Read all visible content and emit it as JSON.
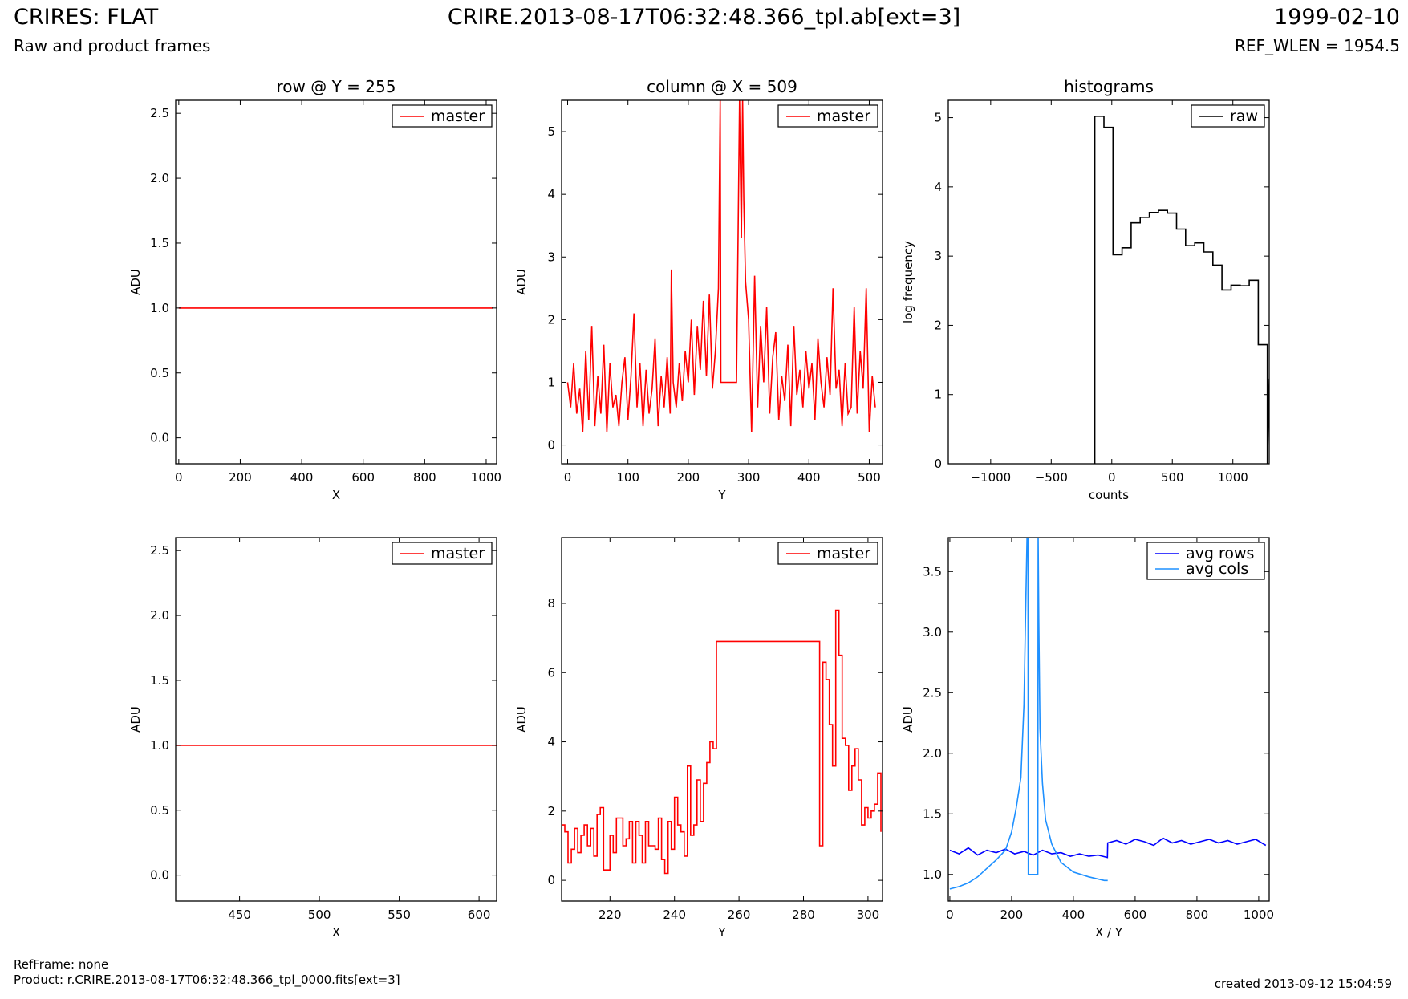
{
  "header": {
    "title": "CRIRES: FLAT",
    "file": "CRIRE.2013-08-17T06:32:48.366_tpl.ab[ext=3]",
    "date": "1999-02-10",
    "subtitle": "Raw and product frames",
    "ref_wlen": "REF_WLEN = 1954.5"
  },
  "footer": {
    "ref_frame": "RefFrame: none",
    "product": "Product: r.CRIRE.2013-08-17T06:32:48.366_tpl_0000.fits[ext=3]",
    "created": "created 2013-09-12 15:04:59"
  },
  "colors": {
    "master": "#ff0000",
    "raw": "#000000",
    "avg_rows": "#0000ff",
    "avg_cols": "#1e90ff"
  },
  "chart_data": [
    {
      "id": "p1",
      "type": "line",
      "title": "row @ Y = 255",
      "xlabel": "X",
      "ylabel": "ADU",
      "xlim": [
        -10,
        1034
      ],
      "ylim": [
        -0.2,
        2.6
      ],
      "xticks": [
        0,
        200,
        400,
        600,
        800,
        1000
      ],
      "xticklabels": [
        "0",
        "200",
        "400",
        "600",
        "800",
        "1000"
      ],
      "yticks": [
        0,
        0.5,
        1,
        1.5,
        2,
        2.5
      ],
      "yticklabels": [
        "0.0",
        "0.5",
        "1.0",
        "1.5",
        "2.0",
        "2.5"
      ],
      "legend_position": "top-right",
      "series": [
        {
          "name": "master",
          "color": "#ff0000",
          "x": [
            0,
            1023
          ],
          "y": [
            1.0,
            1.0
          ]
        }
      ]
    },
    {
      "id": "p2",
      "type": "line",
      "title": "column @ X = 509",
      "xlabel": "Y",
      "ylabel": "ADU",
      "xlim": [
        -10,
        522
      ],
      "ylim": [
        -0.3,
        5.5
      ],
      "xticks": [
        0,
        100,
        200,
        300,
        400,
        500
      ],
      "xticklabels": [
        "0",
        "100",
        "200",
        "300",
        "400",
        "500"
      ],
      "yticks": [
        0,
        1,
        2,
        3,
        4,
        5
      ],
      "yticklabels": [
        "0",
        "1",
        "2",
        "3",
        "4",
        "5"
      ],
      "legend_position": "top-right",
      "series": [
        {
          "name": "master",
          "color": "#ff0000",
          "x": [
            0,
            5,
            10,
            15,
            20,
            25,
            30,
            35,
            40,
            45,
            50,
            55,
            60,
            65,
            70,
            75,
            80,
            85,
            90,
            95,
            100,
            105,
            110,
            115,
            120,
            125,
            130,
            135,
            140,
            145,
            150,
            155,
            160,
            165,
            170,
            172,
            175,
            180,
            185,
            190,
            195,
            200,
            205,
            210,
            215,
            220,
            225,
            230,
            235,
            240,
            245,
            250,
            253,
            254,
            260,
            270,
            280,
            285,
            286,
            288,
            290,
            292,
            295,
            300,
            305,
            310,
            315,
            320,
            325,
            330,
            335,
            340,
            345,
            350,
            355,
            360,
            365,
            370,
            375,
            380,
            385,
            390,
            395,
            400,
            405,
            410,
            415,
            420,
            425,
            430,
            435,
            440,
            445,
            450,
            455,
            460,
            465,
            470,
            475,
            480,
            485,
            490,
            495,
            500,
            505,
            510
          ],
          "y": [
            1.0,
            0.6,
            1.3,
            0.5,
            0.9,
            0.2,
            1.5,
            0.4,
            1.9,
            0.3,
            1.1,
            0.5,
            1.6,
            0.2,
            1.3,
            0.6,
            0.8,
            0.3,
            1.0,
            1.4,
            0.4,
            1.1,
            2.1,
            0.6,
            1.3,
            0.3,
            1.2,
            0.5,
            0.9,
            1.7,
            0.3,
            1.1,
            0.6,
            1.4,
            0.5,
            2.8,
            1.0,
            0.6,
            1.3,
            0.7,
            1.5,
            1.0,
            2.0,
            0.8,
            1.9,
            1.2,
            2.3,
            1.1,
            2.4,
            0.9,
            1.5,
            2.5,
            5.5,
            1.0,
            1.0,
            1.0,
            1.0,
            5.5,
            4.7,
            3.3,
            5.5,
            3.9,
            2.6,
            2.0,
            0.2,
            2.7,
            0.6,
            1.9,
            1.0,
            2.2,
            0.5,
            1.4,
            1.8,
            0.4,
            1.1,
            0.7,
            1.6,
            0.3,
            1.9,
            0.8,
            1.2,
            0.6,
            1.5,
            0.9,
            1.3,
            0.4,
            1.7,
            1.0,
            0.6,
            1.4,
            0.8,
            2.5,
            0.9,
            1.2,
            0.3,
            1.3,
            0.5,
            0.6,
            2.2,
            0.5,
            1.5,
            0.9,
            2.5,
            0.2,
            1.1,
            0.6
          ]
        }
      ]
    },
    {
      "id": "p3",
      "type": "line",
      "title": "histograms",
      "xlabel": "counts",
      "ylabel": "log frequency",
      "xlim": [
        -1350,
        1300
      ],
      "ylim": [
        0,
        5.25
      ],
      "xticks": [
        -1000,
        -500,
        0,
        500,
        1000
      ],
      "xticklabels": [
        "−1000",
        "−500",
        "0",
        "500",
        "1000"
      ],
      "yticks": [
        0,
        1,
        2,
        3,
        4,
        5
      ],
      "yticklabels": [
        "0",
        "1",
        "2",
        "3",
        "4",
        "5"
      ],
      "legend_position": "top-right",
      "series": [
        {
          "name": "raw",
          "color": "#000000",
          "x": [
            -140,
            -140,
            -65,
            -65,
            10,
            10,
            85,
            85,
            160,
            160,
            235,
            235,
            310,
            310,
            385,
            385,
            460,
            460,
            535,
            535,
            610,
            610,
            685,
            685,
            760,
            760,
            835,
            835,
            910,
            910,
            985,
            985,
            1060,
            1060,
            1135,
            1135,
            1210,
            1210,
            1285,
            1285,
            1300
          ],
          "y": [
            0,
            5.02,
            5.02,
            4.86,
            4.86,
            3.02,
            3.02,
            3.12,
            3.12,
            3.48,
            3.48,
            3.56,
            3.56,
            3.63,
            3.63,
            3.66,
            3.66,
            3.62,
            3.62,
            3.39,
            3.39,
            3.15,
            3.15,
            3.19,
            3.19,
            3.06,
            3.06,
            2.87,
            2.87,
            2.51,
            2.51,
            2.58,
            2.58,
            2.57,
            2.57,
            2.65,
            2.65,
            1.72,
            1.72,
            0,
            1.23
          ]
        }
      ]
    },
    {
      "id": "p4",
      "type": "line",
      "title": "",
      "xlabel": "X",
      "ylabel": "ADU",
      "xlim": [
        410,
        611
      ],
      "ylim": [
        -0.2,
        2.6
      ],
      "xticks": [
        450,
        500,
        550,
        600
      ],
      "xticklabels": [
        "450",
        "500",
        "550",
        "600"
      ],
      "yticks": [
        0,
        0.5,
        1,
        1.5,
        2,
        2.5
      ],
      "yticklabels": [
        "0.0",
        "0.5",
        "1.0",
        "1.5",
        "2.0",
        "2.5"
      ],
      "legend_position": "top-right",
      "series": [
        {
          "name": "master",
          "color": "#ff0000",
          "x": [
            410,
            611
          ],
          "y": [
            1.0,
            1.0
          ]
        }
      ]
    },
    {
      "id": "p5",
      "type": "line",
      "title": "",
      "xlabel": "Y",
      "ylabel": "ADU",
      "xlim": [
        205,
        304.5
      ],
      "ylim": [
        -0.6,
        9.9
      ],
      "xticks": [
        220,
        240,
        260,
        280,
        300
      ],
      "xticklabels": [
        "220",
        "240",
        "260",
        "280",
        "300"
      ],
      "yticks": [
        0,
        2,
        4,
        6,
        8
      ],
      "yticklabels": [
        "0",
        "2",
        "4",
        "6",
        "8"
      ],
      "legend_position": "top-right",
      "series": [
        {
          "name": "master",
          "color": "#ff0000",
          "step": true,
          "x": [
            205,
            206,
            207,
            208,
            209,
            210,
            211,
            212,
            213,
            214,
            215,
            216,
            217,
            218,
            219,
            220,
            221,
            222,
            223,
            224,
            225,
            226,
            227,
            228,
            229,
            230,
            231,
            232,
            233,
            234,
            235,
            236,
            237,
            238,
            239,
            240,
            241,
            242,
            243,
            244,
            245,
            246,
            247,
            248,
            249,
            250,
            251,
            252,
            253,
            285,
            286,
            287,
            288,
            289,
            290,
            291,
            292,
            293,
            294,
            295,
            296,
            297,
            298,
            299,
            300,
            301,
            302,
            303,
            304
          ],
          "y": [
            1.6,
            1.4,
            0.5,
            0.9,
            1.5,
            0.8,
            1.3,
            1.6,
            1.0,
            1.5,
            0.7,
            1.9,
            2.1,
            0.3,
            0.3,
            1.3,
            0.8,
            1.8,
            1.8,
            1.0,
            1.2,
            1.7,
            0.5,
            1.7,
            1.3,
            0.5,
            1.7,
            1.0,
            1.0,
            0.9,
            1.8,
            0.6,
            0.2,
            1.7,
            0.9,
            2.4,
            1.6,
            1.4,
            0.7,
            3.3,
            1.3,
            1.6,
            2.9,
            1.7,
            2.8,
            3.4,
            4.0,
            3.8,
            6.9,
            1.0,
            6.3,
            5.8,
            4.5,
            3.3,
            7.8,
            6.5,
            4.1,
            3.9,
            2.6,
            3.3,
            3.8,
            2.9,
            1.6,
            2.1,
            1.8,
            2.0,
            2.2,
            3.1,
            1.4
          ]
        }
      ]
    },
    {
      "id": "p6",
      "type": "line",
      "title": "",
      "xlabel": "X / Y",
      "ylabel": "ADU",
      "xlim": [
        -5,
        1034
      ],
      "ylim": [
        0.78,
        3.78
      ],
      "xticks": [
        0,
        200,
        400,
        600,
        800,
        1000
      ],
      "xticklabels": [
        "0",
        "200",
        "400",
        "600",
        "800",
        "1000"
      ],
      "yticks": [
        1,
        1.5,
        2,
        2.5,
        3,
        3.5
      ],
      "yticklabels": [
        "1.0",
        "1.5",
        "2.0",
        "2.5",
        "3.0",
        "3.5"
      ],
      "legend_position": "top-right",
      "series": [
        {
          "name": "avg rows",
          "color": "#0000ff",
          "x": [
            0,
            30,
            60,
            90,
            120,
            150,
            180,
            210,
            240,
            270,
            300,
            330,
            360,
            390,
            420,
            450,
            480,
            510,
            511,
            540,
            570,
            600,
            630,
            660,
            690,
            720,
            750,
            780,
            810,
            840,
            870,
            900,
            930,
            960,
            990,
            1023
          ],
          "y": [
            1.2,
            1.17,
            1.22,
            1.16,
            1.2,
            1.18,
            1.21,
            1.17,
            1.19,
            1.16,
            1.2,
            1.17,
            1.18,
            1.15,
            1.17,
            1.15,
            1.16,
            1.14,
            1.26,
            1.28,
            1.25,
            1.29,
            1.27,
            1.24,
            1.3,
            1.26,
            1.28,
            1.25,
            1.27,
            1.29,
            1.26,
            1.28,
            1.25,
            1.27,
            1.29,
            1.24
          ]
        },
        {
          "name": "avg cols",
          "color": "#1e90ff",
          "x": [
            0,
            30,
            60,
            90,
            120,
            150,
            180,
            200,
            215,
            230,
            240,
            245,
            250,
            253,
            254,
            285,
            286,
            288,
            292,
            300,
            310,
            330,
            360,
            400,
            450,
            500,
            511
          ],
          "y": [
            0.88,
            0.9,
            0.93,
            0.98,
            1.05,
            1.12,
            1.2,
            1.35,
            1.55,
            1.8,
            2.4,
            3.1,
            3.8,
            3.8,
            1.0,
            1.0,
            3.8,
            3.1,
            2.2,
            1.75,
            1.45,
            1.25,
            1.1,
            1.02,
            0.98,
            0.95,
            0.95
          ]
        }
      ]
    }
  ]
}
